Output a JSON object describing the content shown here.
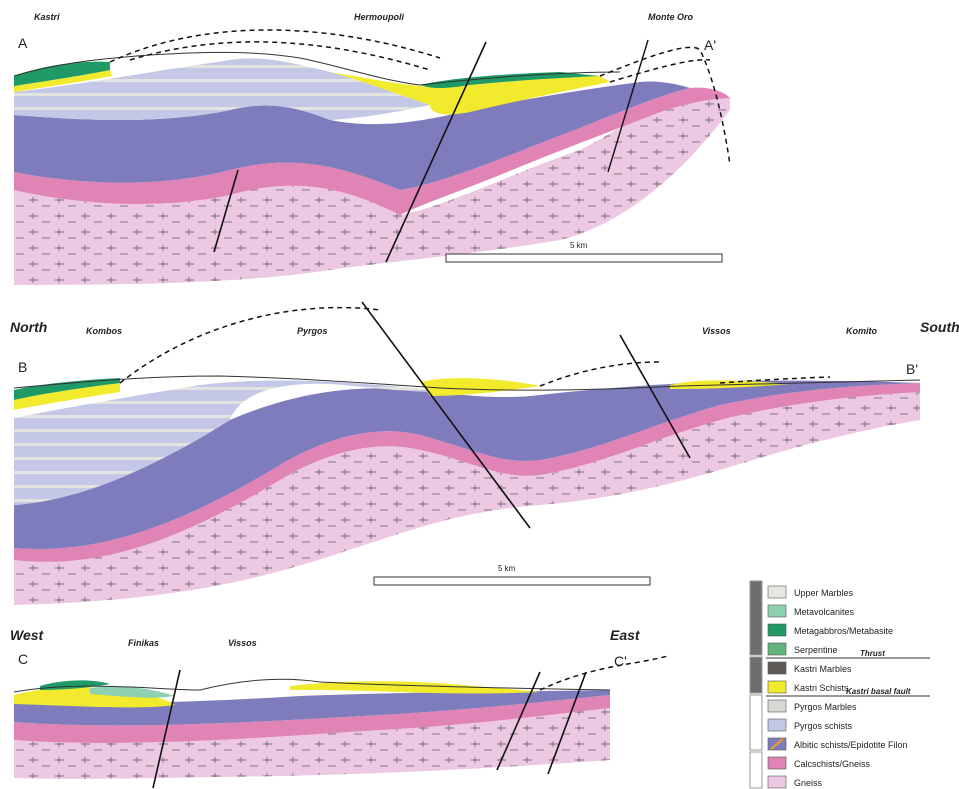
{
  "colors": {
    "upper_marbles": "#e6e6e2",
    "metavolcanites": "#8fd0b0",
    "metagabbros": "#1f9a66",
    "serpentine": "#62b47a",
    "kastri_marbles": "#5e5a58",
    "kastri_schists": "#f2ea2c",
    "pyrgos_marbles": "#d8d8d4",
    "pyrgos_schists": "#c4c8e6",
    "albitic_schists": "#7e7cbc",
    "calcschists": "#e084b6",
    "gneiss": "#ecc8e2"
  },
  "section_a": {
    "left_label": "A",
    "right_label": "A'",
    "places": [
      "Kastri",
      "Hermoupoli",
      "Monte Oro"
    ],
    "scale": "5 km"
  },
  "section_b": {
    "left_label": "B",
    "right_label": "B'",
    "left_direction": "North",
    "right_direction": "South",
    "places": [
      "Kombos",
      "Pyrgos",
      "Vissos",
      "Komito"
    ],
    "scale": "5 km"
  },
  "section_c": {
    "left_label": "C",
    "right_label": "C'",
    "left_direction": "West",
    "right_direction": "East",
    "places": [
      "Finikas",
      "Vissos"
    ]
  },
  "legend": {
    "items": [
      {
        "label": "Upper Marbles",
        "color_key": "upper_marbles"
      },
      {
        "label": "Metavolcanites",
        "color_key": "metavolcanites"
      },
      {
        "label": "Metagabbros/Metabasite",
        "color_key": "metagabbros"
      },
      {
        "label": "Serpentine",
        "color_key": "serpentine"
      },
      {
        "label": "Kastri Marbles",
        "color_key": "kastri_marbles"
      },
      {
        "label": "Kastri Schists",
        "color_key": "kastri_schists"
      },
      {
        "label": "Pyrgos Marbles",
        "color_key": "pyrgos_marbles"
      },
      {
        "label": "Pyrgos schists",
        "color_key": "pyrgos_schists"
      },
      {
        "label": "Albitic schists/Epidotite Filon",
        "color_key": "albitic_schists"
      },
      {
        "label": "Calcschists/Gneiss",
        "color_key": "calcschists"
      },
      {
        "label": "Gneiss",
        "color_key": "gneiss"
      }
    ],
    "thrust_label": "Thrust",
    "basal_fault_label": "Kastri basal fault"
  }
}
